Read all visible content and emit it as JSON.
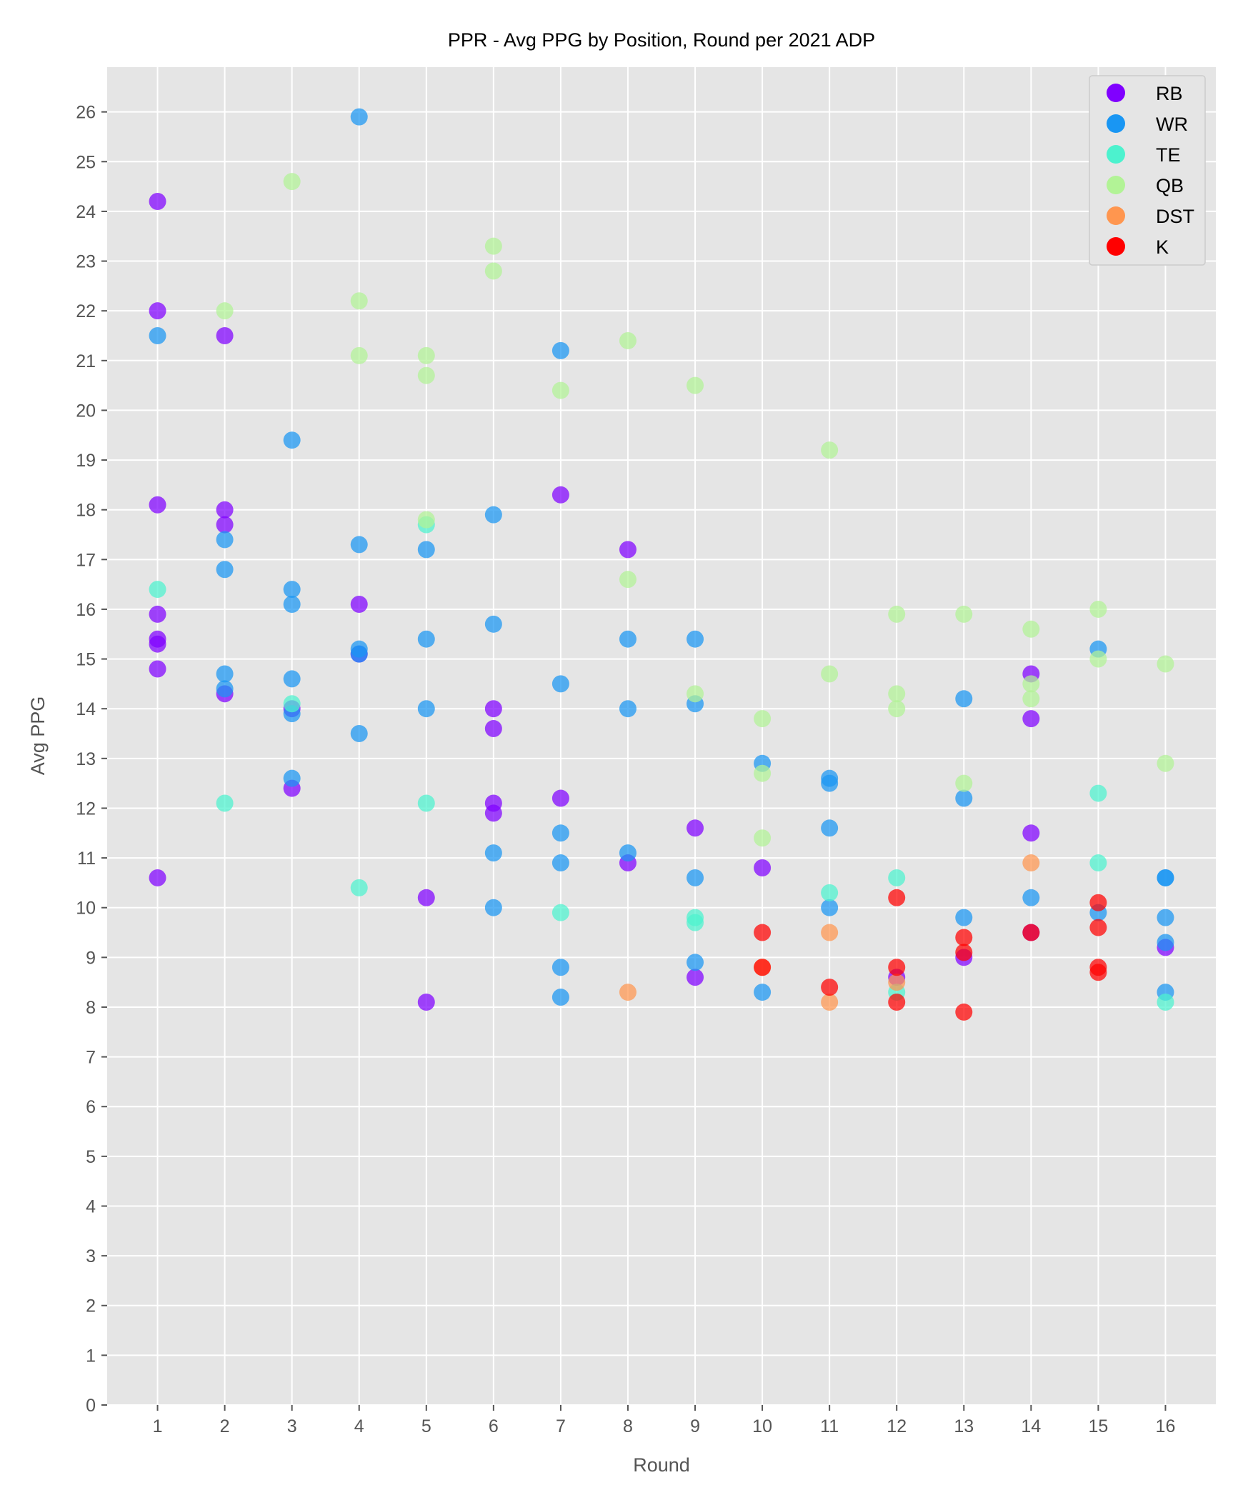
{
  "chart_data": {
    "type": "scatter",
    "title": "PPR - Avg PPG by Position, Round per 2021 ADP",
    "xlabel": "Round",
    "ylabel": "Avg PPG",
    "x_ticks": [
      1,
      2,
      3,
      4,
      5,
      6,
      7,
      8,
      9,
      10,
      11,
      12,
      13,
      14,
      15,
      16
    ],
    "y_ticks": [
      0,
      1,
      2,
      3,
      4,
      5,
      6,
      7,
      8,
      9,
      10,
      11,
      12,
      13,
      14,
      15,
      16,
      17,
      18,
      19,
      20,
      21,
      22,
      23,
      24,
      25,
      26
    ],
    "xlim": [
      0.25,
      16.75
    ],
    "ylim": [
      0,
      26.9
    ],
    "grid": true,
    "legend_position": "top-right",
    "series": [
      {
        "name": "RB",
        "color": "#8000ff",
        "points": [
          [
            1,
            24.2
          ],
          [
            1,
            22.0
          ],
          [
            1,
            18.1
          ],
          [
            1,
            15.9
          ],
          [
            1,
            15.4
          ],
          [
            1,
            15.3
          ],
          [
            1,
            14.8
          ],
          [
            1,
            10.6
          ],
          [
            2,
            21.5
          ],
          [
            2,
            18.0
          ],
          [
            2,
            17.7
          ],
          [
            2,
            14.3
          ],
          [
            3,
            14.0
          ],
          [
            3,
            12.4
          ],
          [
            4,
            16.1
          ],
          [
            4,
            15.1
          ],
          [
            5,
            10.2
          ],
          [
            5,
            8.1
          ],
          [
            6,
            14.0
          ],
          [
            6,
            13.6
          ],
          [
            6,
            12.1
          ],
          [
            6,
            11.9
          ],
          [
            7,
            18.3
          ],
          [
            7,
            12.2
          ],
          [
            8,
            17.2
          ],
          [
            8,
            10.9
          ],
          [
            9,
            11.6
          ],
          [
            9,
            8.6
          ],
          [
            10,
            10.8
          ],
          [
            12,
            8.6
          ],
          [
            13,
            9.0
          ],
          [
            14,
            14.7
          ],
          [
            14,
            13.8
          ],
          [
            14,
            11.5
          ],
          [
            14,
            9.5
          ],
          [
            16,
            9.2
          ]
        ]
      },
      {
        "name": "WR",
        "color": "#1996f3",
        "points": [
          [
            1,
            21.5
          ],
          [
            2,
            17.4
          ],
          [
            2,
            16.8
          ],
          [
            2,
            14.7
          ],
          [
            2,
            14.4
          ],
          [
            3,
            19.4
          ],
          [
            3,
            16.4
          ],
          [
            3,
            16.1
          ],
          [
            3,
            14.6
          ],
          [
            3,
            13.9
          ],
          [
            3,
            12.6
          ],
          [
            4,
            25.9
          ],
          [
            4,
            17.3
          ],
          [
            4,
            15.2
          ],
          [
            4,
            15.1
          ],
          [
            4,
            13.5
          ],
          [
            5,
            17.2
          ],
          [
            5,
            15.4
          ],
          [
            5,
            14.0
          ],
          [
            6,
            17.9
          ],
          [
            6,
            15.7
          ],
          [
            6,
            11.1
          ],
          [
            6,
            10.0
          ],
          [
            7,
            21.2
          ],
          [
            7,
            14.5
          ],
          [
            7,
            11.5
          ],
          [
            7,
            10.9
          ],
          [
            7,
            8.8
          ],
          [
            7,
            8.2
          ],
          [
            8,
            15.4
          ],
          [
            8,
            14.0
          ],
          [
            8,
            11.1
          ],
          [
            9,
            15.4
          ],
          [
            9,
            14.1
          ],
          [
            9,
            10.6
          ],
          [
            9,
            8.9
          ],
          [
            10,
            12.9
          ],
          [
            10,
            8.3
          ],
          [
            11,
            12.6
          ],
          [
            11,
            12.5
          ],
          [
            11,
            11.6
          ],
          [
            11,
            10.0
          ],
          [
            13,
            14.2
          ],
          [
            13,
            12.2
          ],
          [
            13,
            9.8
          ],
          [
            14,
            10.2
          ],
          [
            15,
            15.2
          ],
          [
            15,
            9.9
          ],
          [
            16,
            10.6
          ],
          [
            16,
            10.6
          ],
          [
            16,
            9.8
          ],
          [
            16,
            9.3
          ],
          [
            16,
            8.3
          ]
        ]
      },
      {
        "name": "TE",
        "color": "#4cf2ce",
        "points": [
          [
            1,
            16.4
          ],
          [
            2,
            12.1
          ],
          [
            3,
            14.1
          ],
          [
            4,
            10.4
          ],
          [
            5,
            17.7
          ],
          [
            5,
            12.1
          ],
          [
            7,
            9.9
          ],
          [
            9,
            9.8
          ],
          [
            9,
            9.7
          ],
          [
            11,
            10.3
          ],
          [
            12,
            10.6
          ],
          [
            12,
            8.3
          ],
          [
            15,
            12.3
          ],
          [
            15,
            10.9
          ],
          [
            16,
            8.1
          ]
        ]
      },
      {
        "name": "QB",
        "color": "#b2f396",
        "points": [
          [
            2,
            22.0
          ],
          [
            3,
            24.6
          ],
          [
            4,
            22.2
          ],
          [
            4,
            21.1
          ],
          [
            5,
            21.1
          ],
          [
            5,
            20.7
          ],
          [
            5,
            17.8
          ],
          [
            6,
            23.3
          ],
          [
            6,
            22.8
          ],
          [
            7,
            20.4
          ],
          [
            8,
            21.4
          ],
          [
            8,
            16.6
          ],
          [
            9,
            20.5
          ],
          [
            9,
            14.3
          ],
          [
            10,
            13.8
          ],
          [
            10,
            12.7
          ],
          [
            10,
            11.4
          ],
          [
            11,
            19.2
          ],
          [
            11,
            14.7
          ],
          [
            12,
            15.9
          ],
          [
            12,
            14.3
          ],
          [
            12,
            14.0
          ],
          [
            13,
            15.9
          ],
          [
            13,
            12.5
          ],
          [
            14,
            15.6
          ],
          [
            14,
            14.5
          ],
          [
            14,
            14.2
          ],
          [
            15,
            16.0
          ],
          [
            15,
            15.0
          ],
          [
            16,
            14.9
          ],
          [
            16,
            12.9
          ]
        ]
      },
      {
        "name": "DST",
        "color": "#ff964f",
        "points": [
          [
            8,
            8.3
          ],
          [
            10,
            8.8
          ],
          [
            11,
            9.5
          ],
          [
            11,
            8.1
          ],
          [
            12,
            8.5
          ],
          [
            14,
            10.9
          ]
        ]
      },
      {
        "name": "K",
        "color": "#ff0000",
        "points": [
          [
            10,
            9.5
          ],
          [
            10,
            8.8
          ],
          [
            11,
            8.4
          ],
          [
            12,
            10.2
          ],
          [
            12,
            8.8
          ],
          [
            12,
            8.1
          ],
          [
            13,
            9.4
          ],
          [
            13,
            9.1
          ],
          [
            13,
            7.9
          ],
          [
            14,
            9.5
          ],
          [
            15,
            10.1
          ],
          [
            15,
            9.6
          ],
          [
            15,
            8.8
          ],
          [
            15,
            8.7
          ]
        ]
      }
    ]
  }
}
